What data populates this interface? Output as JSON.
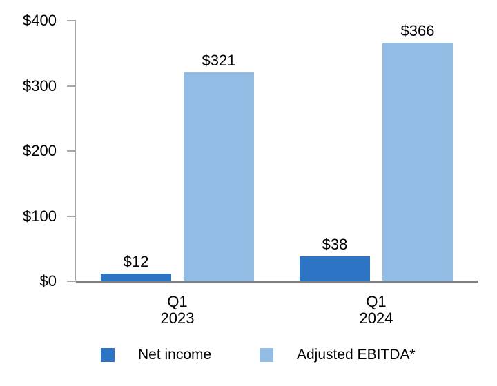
{
  "chart_data": {
    "type": "bar",
    "title": "",
    "xlabel": "",
    "ylabel": "",
    "categories": [
      "Q1 2023",
      "Q1 2024"
    ],
    "category_lines": [
      [
        "Q1",
        "2023"
      ],
      [
        "Q1",
        "2024"
      ]
    ],
    "series": [
      {
        "name": "Net income",
        "color": "#2E74C4",
        "values": [
          12,
          38
        ],
        "data_labels": [
          "$12",
          "$38"
        ]
      },
      {
        "name": "Adjusted EBITDA*",
        "color": "#92BCE4",
        "values": [
          321,
          366
        ],
        "data_labels": [
          "$321",
          "$366"
        ]
      }
    ],
    "ylim": [
      0,
      400
    ],
    "ytick_values": [
      0,
      100,
      200,
      300,
      400
    ],
    "ytick_labels": [
      "$0",
      "$100",
      "$200",
      "$300",
      "$400"
    ],
    "grid": "off",
    "legend_position": "bottom",
    "axis_color": "#A6A6A6",
    "baseline_color": "#808080",
    "text_color": "#000000",
    "background_color": "#FFFFFF"
  }
}
